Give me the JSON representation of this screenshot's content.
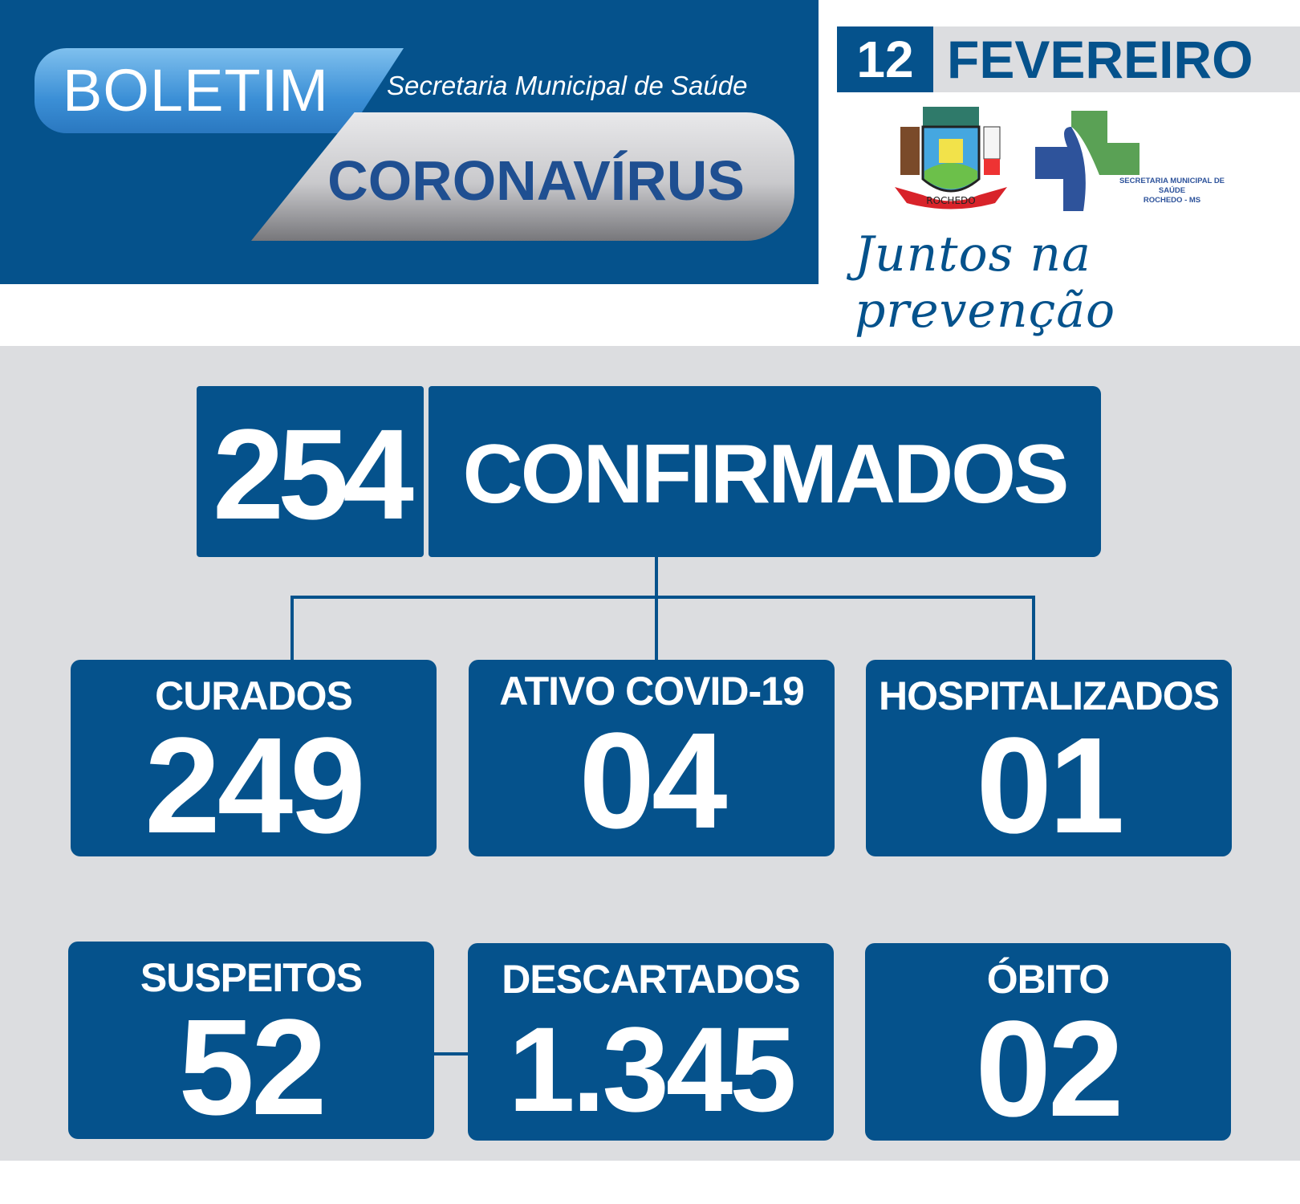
{
  "header": {
    "boletim": "BOLETIM",
    "secretaria": "Secretaria Municipal de Saúde",
    "coronavirus": "CORONAVÍRUS"
  },
  "date": {
    "day": "12",
    "month": "FEVEREIRO"
  },
  "logos": {
    "crest_text": "ROCHEDO",
    "health_line1": "SECRETARIA MUNICIPAL DE SAÚDE",
    "health_line2": "ROCHEDO - MS"
  },
  "slogan": "Juntos na prevenção",
  "confirmed": {
    "value": "254",
    "label": "CONFIRMADOS"
  },
  "stats": [
    {
      "label": "CURADOS",
      "value": "249"
    },
    {
      "label": "ATIVO COVID-19",
      "value": "04"
    },
    {
      "label": "HOSPITALIZADOS",
      "value": "01"
    },
    {
      "label": "SUSPEITOS",
      "value": "52"
    },
    {
      "label": "DESCARTADOS",
      "value": "1.345"
    },
    {
      "label": "ÓBITO",
      "value": "02"
    }
  ],
  "colors": {
    "primary": "#05528c",
    "band": "#dcdde0",
    "green": "#5aa155",
    "blue_cross": "#2e539b"
  }
}
